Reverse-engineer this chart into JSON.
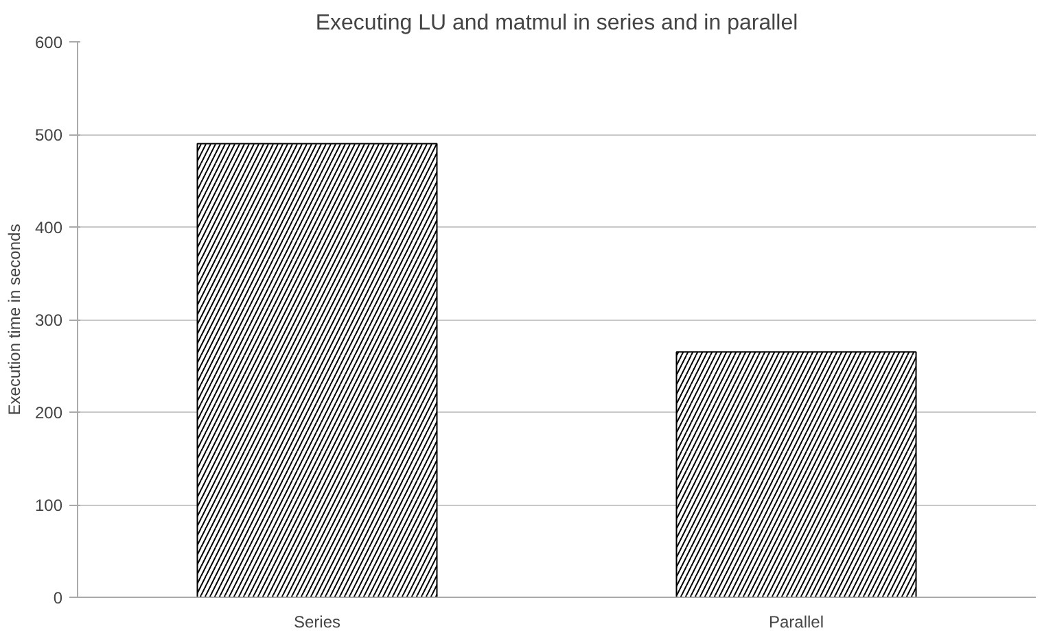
{
  "chart_data": {
    "type": "bar",
    "title": "Executing LU and matmul in series and in parallel",
    "ylabel": "Execution time in seconds",
    "categories": [
      "Series",
      "Parallel"
    ],
    "values": [
      490,
      265
    ],
    "color": "#000000",
    "ylim": [
      0,
      600
    ],
    "yticks": [
      0,
      100,
      200,
      300,
      400,
      500,
      600
    ],
    "grid": "y"
  }
}
